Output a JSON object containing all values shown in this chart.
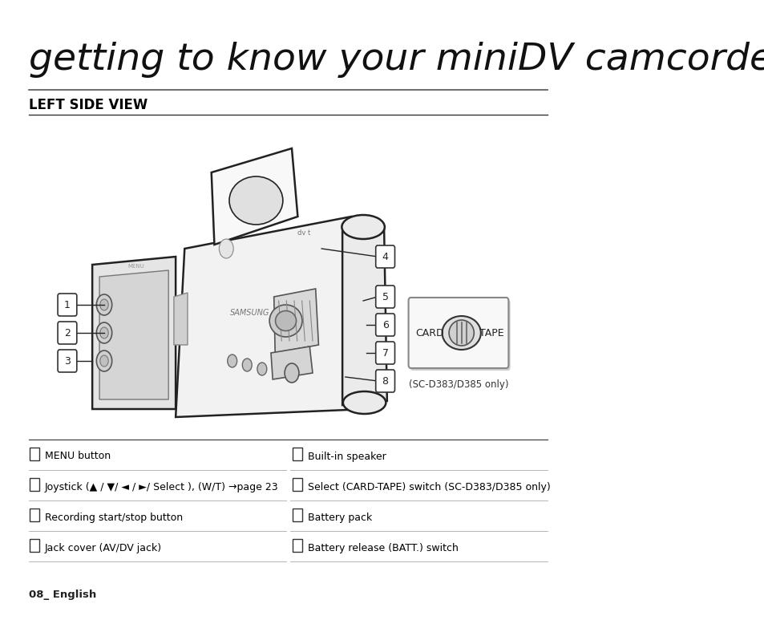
{
  "title": "getting to know your miniDV camcorder",
  "section": "LEFT SIDE VIEW",
  "background_color": "#ffffff",
  "text_color": "#000000",
  "left_items": [
    "MENU button",
    "Joystick (▲ / ▼/ ◄ / ►/ Select ), (W/T) →page 23",
    "Recording start/stop button",
    "Jack cover (AV/DV jack)"
  ],
  "right_items": [
    "Built-in speaker",
    "Select (CARD-TAPE) switch (SC-D383/D385 only)",
    "Battery pack",
    "Battery release (BATT.) switch"
  ],
  "footer_text": "08_ English",
  "switch_label_left": "CARD",
  "switch_label_right": "TAPE",
  "switch_note": "(SC-D383/D385 only)"
}
